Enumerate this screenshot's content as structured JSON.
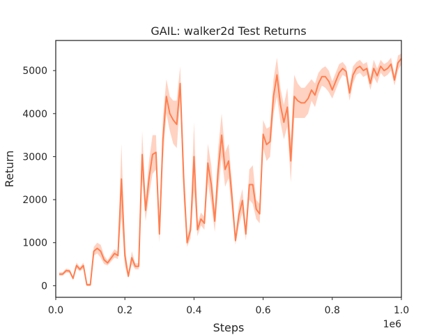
{
  "chart_data": {
    "type": "line",
    "title": "GAIL: walker2d Test Returns",
    "xlabel": "Steps",
    "ylabel": "Return",
    "x_offset_label": "1e6",
    "xlim": [
      0,
      1.0
    ],
    "ylim": [
      -270,
      5700
    ],
    "xticks": [
      0.0,
      0.2,
      0.4,
      0.6,
      0.8,
      1.0
    ],
    "xtick_labels": [
      "0.0",
      "0.2",
      "0.4",
      "0.6",
      "0.8",
      "1.0"
    ],
    "yticks": [
      0,
      1000,
      2000,
      3000,
      4000,
      5000
    ],
    "ytick_labels": [
      "0",
      "1000",
      "2000",
      "3000",
      "4000",
      "5000"
    ],
    "grid": false,
    "line_color": "#ff7f50",
    "band_color": "#ffbfa8",
    "series": [
      {
        "x": [
          0.01,
          0.02,
          0.03,
          0.04,
          0.05,
          0.06,
          0.07,
          0.08,
          0.09,
          0.1,
          0.11,
          0.12,
          0.13,
          0.14,
          0.15,
          0.16,
          0.17,
          0.18,
          0.19,
          0.2,
          0.21,
          0.22,
          0.23,
          0.24,
          0.25,
          0.26,
          0.27,
          0.28,
          0.29,
          0.3,
          0.31,
          0.32,
          0.33,
          0.34,
          0.35,
          0.36,
          0.37,
          0.38,
          0.39,
          0.4,
          0.41,
          0.42,
          0.43,
          0.44,
          0.45,
          0.46,
          0.47,
          0.48,
          0.49,
          0.5,
          0.51,
          0.52,
          0.53,
          0.54,
          0.55,
          0.56,
          0.57,
          0.58,
          0.59,
          0.6,
          0.61,
          0.62,
          0.63,
          0.64,
          0.65,
          0.66,
          0.67,
          0.68,
          0.69,
          0.7,
          0.71,
          0.72,
          0.73,
          0.74,
          0.75,
          0.76,
          0.77,
          0.78,
          0.79,
          0.8,
          0.81,
          0.82,
          0.83,
          0.84,
          0.85,
          0.86,
          0.87,
          0.88,
          0.89,
          0.9,
          0.91,
          0.92,
          0.93,
          0.94,
          0.95,
          0.96,
          0.97,
          0.98,
          0.99,
          1.0
        ],
        "y": [
          270,
          270,
          350,
          340,
          170,
          470,
          380,
          470,
          20,
          20,
          800,
          870,
          800,
          600,
          530,
          640,
          750,
          700,
          2480,
          700,
          220,
          650,
          450,
          450,
          3050,
          1750,
          2500,
          3050,
          3100,
          1200,
          3400,
          4400,
          4000,
          3850,
          3750,
          4700,
          2500,
          1000,
          1300,
          3000,
          1300,
          1550,
          1450,
          2850,
          2350,
          1500,
          2700,
          3500,
          2700,
          2900,
          2050,
          1050,
          1650,
          1980,
          1200,
          2350,
          2350,
          1780,
          1670,
          3520,
          3280,
          3350,
          4400,
          4900,
          4200,
          3800,
          4150,
          2900,
          4400,
          4300,
          4250,
          4250,
          4350,
          4550,
          4430,
          4700,
          4860,
          4860,
          4750,
          4550,
          4750,
          4950,
          5050,
          4980,
          4480,
          4900,
          5050,
          5100,
          5000,
          5050,
          4700,
          5050,
          4880,
          5100,
          5000,
          5050,
          5150,
          4780,
          5180,
          5280
        ],
        "y_low": [
          230,
          230,
          300,
          300,
          130,
          400,
          330,
          400,
          -10,
          -10,
          700,
          750,
          650,
          500,
          470,
          560,
          650,
          620,
          1600,
          450,
          180,
          500,
          380,
          380,
          2500,
          1500,
          2100,
          2600,
          2700,
          1000,
          2900,
          4000,
          3600,
          3300,
          3200,
          4300,
          2000,
          900,
          1100,
          2200,
          1150,
          1400,
          1300,
          2400,
          1900,
          1250,
          2200,
          3000,
          2300,
          2500,
          1700,
          950,
          1400,
          1700,
          1050,
          2000,
          1900,
          1550,
          1450,
          3200,
          2900,
          3000,
          4000,
          4400,
          3800,
          3400,
          3700,
          2400,
          3900,
          3900,
          3900,
          3900,
          4000,
          4300,
          4150,
          4450,
          4650,
          4600,
          4500,
          4350,
          4550,
          4750,
          4900,
          4850,
          4300,
          4700,
          4900,
          4950,
          4850,
          4900,
          4550,
          4850,
          4700,
          4950,
          4850,
          4900,
          5000,
          4650,
          5000,
          5150
        ],
        "y_high": [
          310,
          310,
          400,
          380,
          210,
          540,
          430,
          540,
          50,
          50,
          900,
          1000,
          950,
          700,
          590,
          720,
          850,
          780,
          3300,
          950,
          260,
          800,
          520,
          520,
          3600,
          2000,
          2900,
          3500,
          3500,
          1400,
          3900,
          4800,
          4400,
          4300,
          4300,
          5100,
          3000,
          1100,
          1500,
          3800,
          1450,
          1700,
          1600,
          3300,
          2800,
          1750,
          3200,
          4000,
          3100,
          3300,
          2400,
          1150,
          1900,
          2250,
          1350,
          2700,
          2800,
          2000,
          1900,
          3850,
          3650,
          3700,
          4800,
          5300,
          4600,
          4200,
          4600,
          3400,
          4900,
          4700,
          4600,
          4600,
          4700,
          4800,
          4700,
          4950,
          5050,
          5100,
          5000,
          4750,
          4950,
          5150,
          5200,
          5100,
          4650,
          5100,
          5200,
          5250,
          5150,
          5200,
          4850,
          5250,
          5050,
          5250,
          5150,
          5200,
          5300,
          4900,
          5350,
          5400
        ]
      }
    ]
  }
}
